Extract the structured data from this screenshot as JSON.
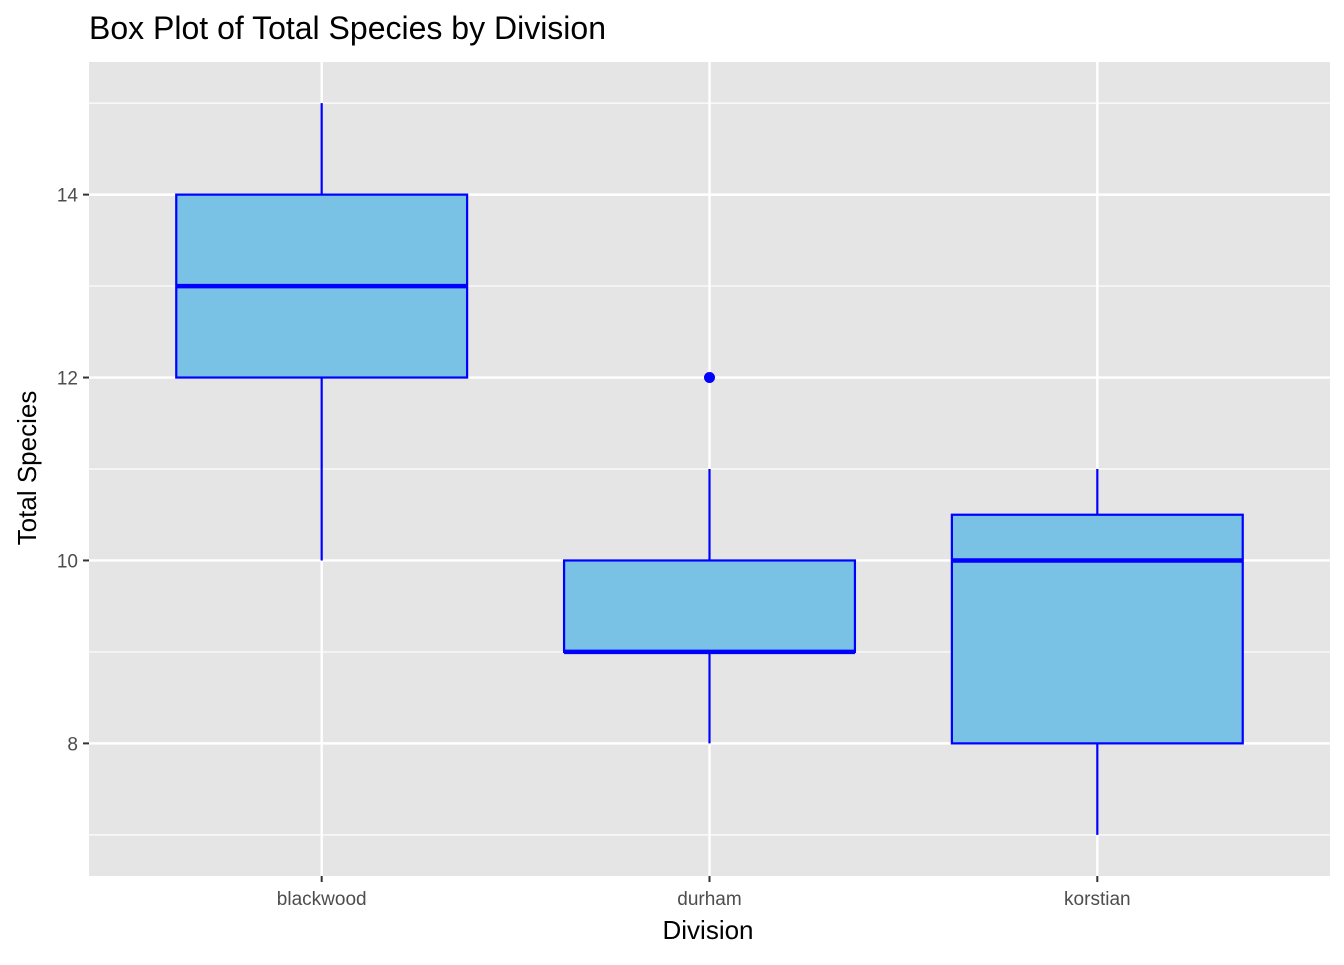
{
  "chart_data": {
    "type": "box",
    "title": "Box Plot of Total Species by Division",
    "xlabel": "Division",
    "ylabel": "Total Species",
    "categories": [
      "blackwood",
      "durham",
      "korstian"
    ],
    "boxes": [
      {
        "category": "blackwood",
        "whisker_low": 10,
        "q1": 12,
        "median": 13,
        "q3": 14,
        "whisker_high": 15,
        "outliers": []
      },
      {
        "category": "durham",
        "whisker_low": 8,
        "q1": 9,
        "median": 9,
        "q3": 10,
        "whisker_high": 11,
        "outliers": [
          12
        ]
      },
      {
        "category": "korstian",
        "whisker_low": 7,
        "q1": 8,
        "median": 10,
        "q3": 10.5,
        "whisker_high": 11,
        "outliers": []
      }
    ],
    "ylim": [
      6.55,
      15.45
    ],
    "yticks_major": [
      8,
      10,
      12,
      14
    ],
    "yticks_minor": [
      7,
      9,
      11,
      13,
      15
    ],
    "grid": true,
    "legend": "none",
    "colors": {
      "panel_background": "#e5e5e5",
      "grid_line": "#ffffff",
      "box_fill": "#79c1e5",
      "box_outline": "#0000ff",
      "outlier_point": "#0000ff",
      "tick_label": "#4d4d4d",
      "tick_mark": "#333333"
    }
  }
}
